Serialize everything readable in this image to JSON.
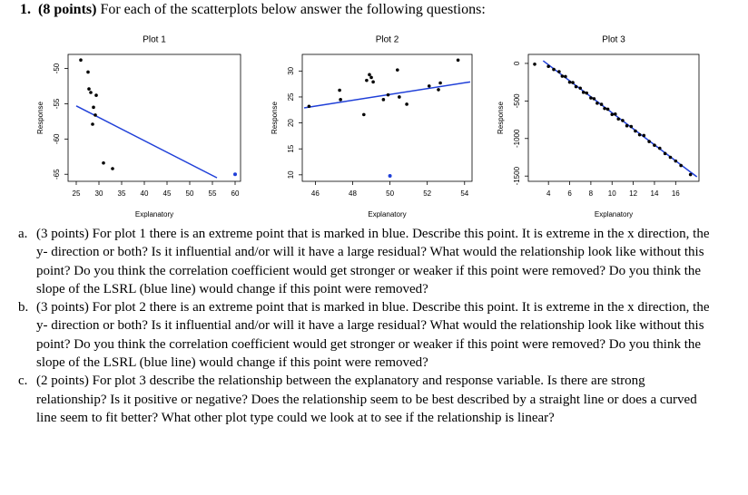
{
  "question": {
    "number": "1.",
    "points": "(8 points)",
    "text": "For each of the scatterplots below answer the following questions:",
    "items": [
      {
        "label": "a.",
        "text": "(3 points) For plot 1 there is an extreme point that is marked in blue. Describe this point. It is extreme in the x direction, the y- direction or both? Is it influential and/or will it have a large residual? What would the relationship look like without this point? Do you think the correlation coefficient would get stronger or weaker if this point were removed? Do you think the slope of the LSRL (blue line) would change if this point were removed?"
      },
      {
        "label": "b.",
        "text": "(3 points) For plot 2 there is an extreme point that is marked in blue. Describe this point. It is extreme in the x direction, the y- direction or both? Is it influential and/or will it have a large residual? What would the relationship look like without this point? Do you think the correlation coefficient would get stronger or weaker if this point were removed? Do you think the slope of the LSRL (blue line) would change if this point were removed?"
      },
      {
        "label": "c.",
        "text": "(2 points) For plot 3 describe the relationship between the explanatory and response variable.  Is there are strong relationship? Is it positive or negative? Does the relationship seem to be best described by a straight line or does a curved line seem to fit better? What other plot type could we look at to see if the relationship is linear?"
      }
    ]
  },
  "chart_data": [
    {
      "type": "scatter",
      "title": "Plot 1",
      "x_label": "Explanatory",
      "y_label": "Response",
      "x": [
        26,
        27.6,
        27.8,
        28.2,
        29.4,
        28.8,
        29.2,
        28.6,
        31,
        33
      ],
      "y": [
        -48.8,
        -50.5,
        -52.9,
        -53.4,
        -53.8,
        -55.5,
        -56.6,
        -57.9,
        -63.4,
        -64.2
      ],
      "color": "#000000",
      "highlight": {
        "x": 60,
        "y": -65,
        "color": "#1f3fd8"
      },
      "fit_line": {
        "x": [
          25,
          56
        ],
        "y": [
          -55.3,
          -65.5
        ],
        "color": "#1f3fd8"
      },
      "xlim": [
        23.2,
        61.2
      ],
      "ylim": [
        -66,
        -48
      ],
      "xticks": [
        25,
        30,
        35,
        40,
        45,
        50,
        55,
        60
      ],
      "yticks": [
        -65,
        -60,
        -55,
        -50
      ]
    },
    {
      "type": "scatter",
      "title": "Plot 2",
      "x_label": "Explanatory",
      "y_label": "Response",
      "x": [
        45.66,
        47.3,
        47.35,
        48.6,
        48.75,
        48.9,
        49.0,
        49.1,
        49.65,
        49.9,
        50.4,
        50.5,
        50.9,
        52.1,
        52.6,
        52.7,
        53.65
      ],
      "y": [
        23.2,
        26.3,
        24.5,
        21.6,
        28.2,
        29.3,
        28.75,
        27.9,
        24.5,
        25.4,
        30.2,
        25,
        23.6,
        27.1,
        26.4,
        27.7,
        32.1
      ],
      "color": "#000000",
      "highlight": {
        "x": 50,
        "y": 9.8,
        "color": "#1f3fd8"
      },
      "fit_line": {
        "x": [
          45.4,
          54.3
        ],
        "y": [
          22.9,
          27.9
        ],
        "color": "#1f3fd8"
      },
      "xlim": [
        45.3,
        54.4
      ],
      "ylim": [
        8.75,
        33.2
      ],
      "xticks": [
        46,
        48,
        50,
        52,
        54
      ],
      "yticks": [
        10,
        15,
        20,
        25,
        30
      ]
    },
    {
      "type": "scatter",
      "title": "Plot 3",
      "x_label": "Explanatory",
      "y_label": "Response",
      "x": [
        2.7,
        4,
        4.5,
        5,
        5.3,
        5.6,
        6,
        6.3,
        6.6,
        7,
        7.3,
        7.6,
        8,
        8.3,
        8.6,
        9,
        9.3,
        9.6,
        10,
        10.3,
        10.6,
        11,
        11.4,
        11.8,
        12.2,
        12.6,
        13,
        13.5,
        14,
        14.5,
        15,
        15.5,
        16,
        16.5,
        17.4
      ],
      "y": [
        -10,
        -40,
        -80,
        -110,
        -170,
        -175,
        -250,
        -255,
        -310,
        -330,
        -385,
        -395,
        -460,
        -470,
        -530,
        -545,
        -600,
        -610,
        -680,
        -675,
        -740,
        -760,
        -830,
        -840,
        -900,
        -950,
        -960,
        -1040,
        -1090,
        -1130,
        -1200,
        -1250,
        -1300,
        -1360,
        -1480
      ],
      "color": "#000000",
      "fit_line": {
        "x": [
          3.5,
          18
        ],
        "y": [
          35,
          -1510
        ],
        "color": "#1f3fd8"
      },
      "xlim": [
        2.1,
        18.2
      ],
      "ylim": [
        -1570,
        120
      ],
      "xticks": [
        4,
        6,
        8,
        10,
        12,
        14,
        16
      ],
      "yticks": [
        -1500,
        -1000,
        -500,
        0
      ]
    }
  ]
}
